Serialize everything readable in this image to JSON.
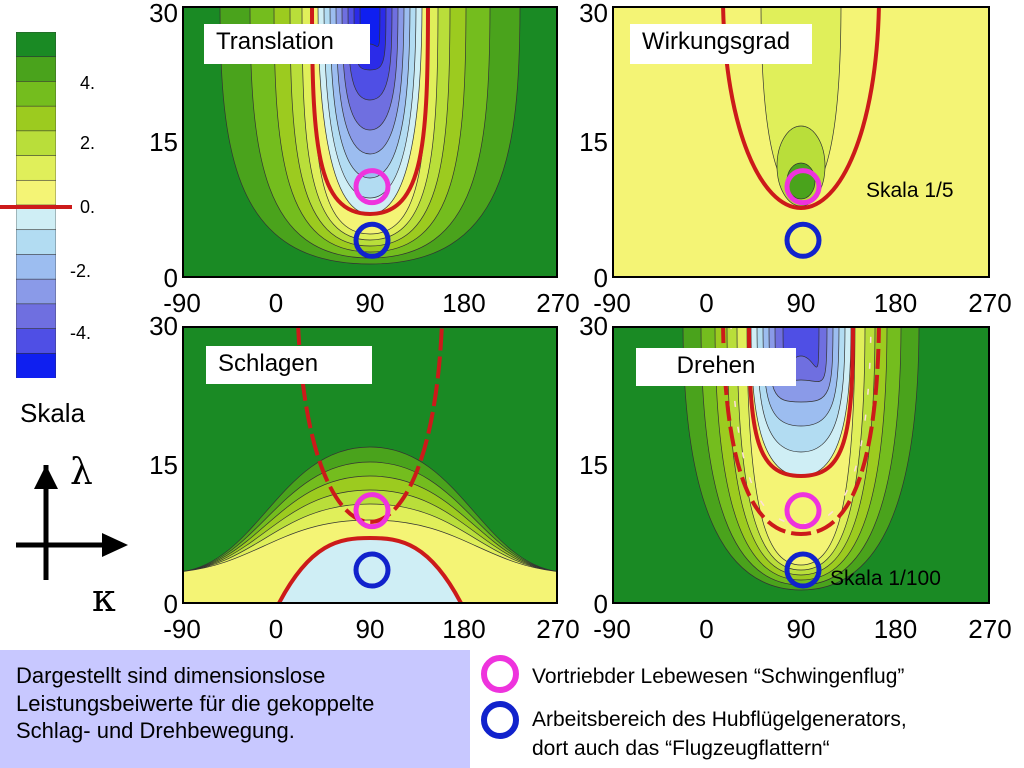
{
  "colors": {
    "levels_pos": [
      "#f4f475",
      "#e0ef5a",
      "#b9de3a",
      "#9ccb1f",
      "#74bd1e",
      "#4aa31c",
      "#2e8f25",
      "#1a8a24"
    ],
    "levels_neg": [
      "#cfeef5",
      "#b2dcf2",
      "#9cbdf0",
      "#8a9ae8",
      "#6f6fe0",
      "#4f4fe5",
      "#2b2be8",
      "#0f1ff0"
    ],
    "red": "#cc1a1a",
    "magenta": "#ee33dd",
    "blue": "#1122cc",
    "infobox_bg": "#c8c8ff"
  },
  "colorbar": {
    "labels": [
      "4.",
      "2.",
      "0.",
      "-2.",
      "-4."
    ],
    "caption": "Skala"
  },
  "axes_symbols": {
    "y": "λ",
    "x": "κ"
  },
  "panels": [
    {
      "id": "translation",
      "title": "Translation",
      "note": ""
    },
    {
      "id": "wirkungsgrad",
      "title": "Wirkungsgrad",
      "note": "Skala 1/5"
    },
    {
      "id": "schlagen",
      "title": "Schlagen",
      "note": ""
    },
    {
      "id": "drehen",
      "title": "Drehen",
      "note": "Skala 1/100"
    }
  ],
  "legend": {
    "magenta": "Vortriebder Lebewesen “Schwingenflug”",
    "blue_line1": "Arbeitsbereich des Hubflügelgenerators,",
    "blue_line2": "dort auch das “Flugzeugflattern“"
  },
  "info": {
    "line1": "Dargestellt sind dimensionslose",
    "line2": "Leistungsbeiwerte für die gekoppelte",
    "line3": "Schlag- und Drehbewegung."
  },
  "chart_data": [
    {
      "type": "heatmap",
      "title": "Translation",
      "xlabel": "κ",
      "ylabel": "λ",
      "x_ticks": [
        -90,
        0,
        90,
        180,
        270
      ],
      "y_ticks": [
        0,
        15,
        30
      ],
      "xlim": [
        -90,
        270
      ],
      "ylim": [
        0,
        30
      ],
      "colorbar_ticks": [
        -4,
        -2,
        0,
        2,
        4
      ],
      "markers": [
        {
          "color": "magenta",
          "x": 90,
          "y": 10
        },
        {
          "color": "blue",
          "x": 90,
          "y": 4
        }
      ]
    },
    {
      "type": "heatmap",
      "title": "Wirkungsgrad",
      "annotation": "Skala 1/5",
      "xlabel": "κ",
      "ylabel": "λ",
      "x_ticks": [
        -90,
        0,
        90,
        180,
        270
      ],
      "y_ticks": [
        0,
        15,
        30
      ],
      "xlim": [
        -90,
        270
      ],
      "ylim": [
        0,
        30
      ],
      "markers": [
        {
          "color": "magenta",
          "x": 90,
          "y": 10
        },
        {
          "color": "blue",
          "x": 90,
          "y": 4
        }
      ]
    },
    {
      "type": "heatmap",
      "title": "Schlagen",
      "xlabel": "κ",
      "ylabel": "λ",
      "x_ticks": [
        -90,
        0,
        90,
        180,
        270
      ],
      "y_ticks": [
        0,
        15,
        30
      ],
      "xlim": [
        -90,
        270
      ],
      "ylim": [
        0,
        30
      ],
      "markers": [
        {
          "color": "magenta",
          "x": 90,
          "y": 10
        },
        {
          "color": "blue",
          "x": 90,
          "y": 3.5
        }
      ]
    },
    {
      "type": "heatmap",
      "title": "Drehen",
      "annotation": "Skala 1/100",
      "xlabel": "κ",
      "ylabel": "λ",
      "x_ticks": [
        -90,
        0,
        90,
        180,
        270
      ],
      "y_ticks": [
        0,
        15,
        30
      ],
      "xlim": [
        -90,
        270
      ],
      "ylim": [
        0,
        30
      ],
      "markers": [
        {
          "color": "magenta",
          "x": 90,
          "y": 10
        },
        {
          "color": "blue",
          "x": 90,
          "y": 3.5
        }
      ]
    }
  ]
}
